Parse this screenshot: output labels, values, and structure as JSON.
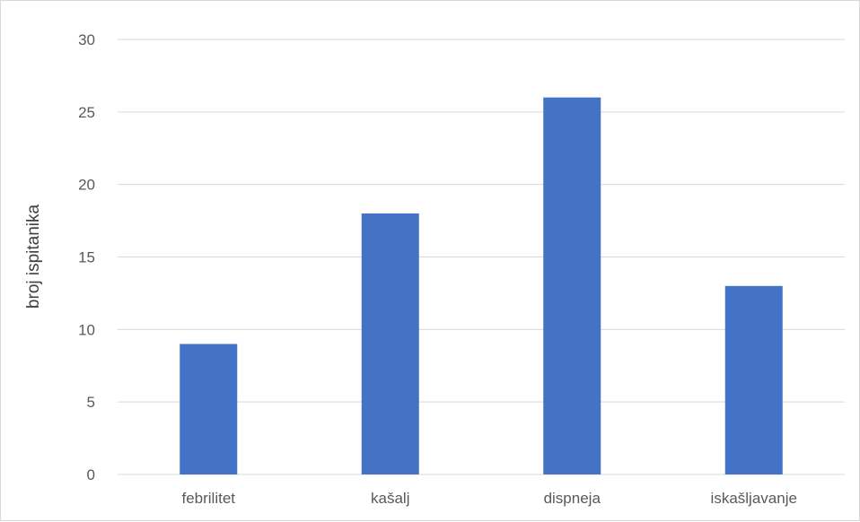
{
  "chart_data": {
    "type": "bar",
    "title": "",
    "xlabel": "",
    "ylabel": "broj ispitanika",
    "categories": [
      "febrilitet",
      "kašalj",
      "dispneja",
      "iskašljavanje"
    ],
    "values": [
      9,
      18,
      26,
      13
    ],
    "ylim": [
      0,
      30
    ],
    "yticks": [
      0,
      5,
      10,
      15,
      20,
      25,
      30
    ],
    "grid": true,
    "legend": "none",
    "bar_color": "#4472C4",
    "grid_color": "#d9d9d9"
  }
}
